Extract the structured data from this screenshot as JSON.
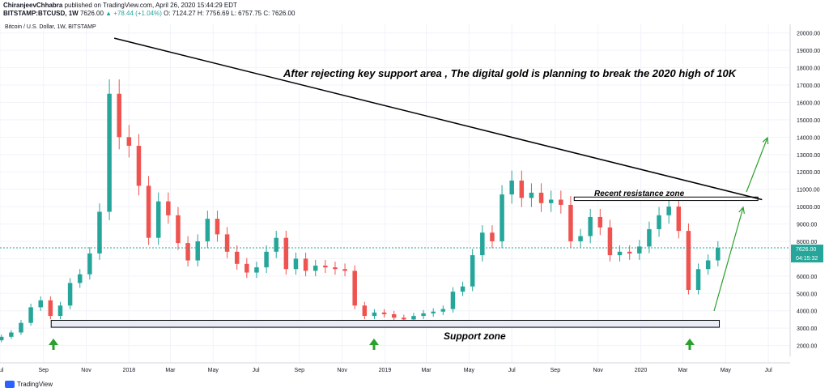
{
  "header": {
    "author": "ChiranjeevChhabra",
    "published": " published on TradingView.com, April 26, 2020 15:44:29 EDT",
    "symbol": "BITSTAMP:BTCUSD, 1W",
    "last": "7626.00",
    "change": "▲ +78.44 (+1.04%)",
    "ohlc": "O: 7124.27  H: 7756.69  L: 6757.75  C: 7626.00"
  },
  "symbol_label": "Bitcoin / U.S. Dollar, 1W, BITSTAMP",
  "annotations": {
    "headline": "After rejecting key support area , The digital gold is planning to break the 2020 high of 10K",
    "resistance": "Recent resistance zone",
    "support": "Support zone"
  },
  "price_badge": {
    "price": "7626.00",
    "countdown": "04:15:32"
  },
  "logo": "TradingView",
  "colors": {
    "up": "#26a69a",
    "down": "#ef5350",
    "arrow": "#2ca02c",
    "trend": "#000000",
    "price_line": "#26a69a"
  },
  "chart_data": {
    "type": "candlestick",
    "symbol": "BTCUSD",
    "timeframe": "1W",
    "ylim": [
      1000,
      20500
    ],
    "y_ticks": [
      2000,
      3000,
      4000,
      5000,
      6000,
      7000,
      8000,
      9000,
      10000,
      11000,
      12000,
      13000,
      14000,
      15000,
      16000,
      17000,
      18000,
      19000,
      20000
    ],
    "x_ticks": [
      {
        "label": "Jul",
        "date": "2017-07-01"
      },
      {
        "label": "Sep",
        "date": "2017-09-01"
      },
      {
        "label": "Nov",
        "date": "2017-11-01"
      },
      {
        "label": "2018",
        "date": "2018-01-01"
      },
      {
        "label": "Mar",
        "date": "2018-03-01"
      },
      {
        "label": "May",
        "date": "2018-05-01"
      },
      {
        "label": "Jul",
        "date": "2018-07-01"
      },
      {
        "label": "Sep",
        "date": "2018-09-01"
      },
      {
        "label": "Nov",
        "date": "2018-11-01"
      },
      {
        "label": "2019",
        "date": "2019-01-01"
      },
      {
        "label": "Mar",
        "date": "2019-03-01"
      },
      {
        "label": "May",
        "date": "2019-05-01"
      },
      {
        "label": "Jul",
        "date": "2019-07-01"
      },
      {
        "label": "Sep",
        "date": "2019-09-01"
      },
      {
        "label": "Nov",
        "date": "2019-11-01"
      },
      {
        "label": "2020",
        "date": "2020-01-01"
      },
      {
        "label": "Mar",
        "date": "2020-03-01"
      },
      {
        "label": "May",
        "date": "2020-05-01"
      },
      {
        "label": "Jul",
        "date": "2020-07-01"
      }
    ],
    "xlim": [
      "2017-07-01",
      "2020-08-01"
    ],
    "closes": [
      {
        "date": "2017-07-03",
        "c": 2500
      },
      {
        "date": "2017-07-17",
        "c": 2750
      },
      {
        "date": "2017-07-31",
        "c": 3300
      },
      {
        "date": "2017-08-14",
        "c": 4200
      },
      {
        "date": "2017-08-28",
        "c": 4600
      },
      {
        "date": "2017-09-11",
        "c": 3700
      },
      {
        "date": "2017-09-25",
        "c": 4300
      },
      {
        "date": "2017-10-09",
        "c": 5600
      },
      {
        "date": "2017-10-23",
        "c": 6100
      },
      {
        "date": "2017-11-06",
        "c": 7300
      },
      {
        "date": "2017-11-20",
        "c": 9700
      },
      {
        "date": "2017-12-04",
        "c": 16500
      },
      {
        "date": "2017-12-18",
        "c": 14000
      },
      {
        "date": "2018-01-01",
        "c": 13500
      },
      {
        "date": "2018-01-15",
        "c": 11200
      },
      {
        "date": "2018-01-29",
        "c": 8200
      },
      {
        "date": "2018-02-12",
        "c": 10300
      },
      {
        "date": "2018-02-26",
        "c": 9500
      },
      {
        "date": "2018-03-12",
        "c": 7900
      },
      {
        "date": "2018-03-26",
        "c": 6900
      },
      {
        "date": "2018-04-09",
        "c": 8000
      },
      {
        "date": "2018-04-23",
        "c": 9300
      },
      {
        "date": "2018-05-07",
        "c": 8400
      },
      {
        "date": "2018-05-21",
        "c": 7400
      },
      {
        "date": "2018-06-04",
        "c": 6700
      },
      {
        "date": "2018-06-18",
        "c": 6200
      },
      {
        "date": "2018-07-02",
        "c": 6500
      },
      {
        "date": "2018-07-16",
        "c": 7400
      },
      {
        "date": "2018-07-30",
        "c": 8200
      },
      {
        "date": "2018-08-13",
        "c": 6400
      },
      {
        "date": "2018-08-27",
        "c": 7000
      },
      {
        "date": "2018-09-10",
        "c": 6300
      },
      {
        "date": "2018-09-24",
        "c": 6600
      },
      {
        "date": "2018-10-08",
        "c": 6500
      },
      {
        "date": "2018-10-22",
        "c": 6400
      },
      {
        "date": "2018-11-05",
        "c": 6300
      },
      {
        "date": "2018-11-19",
        "c": 4300
      },
      {
        "date": "2018-12-03",
        "c": 3700
      },
      {
        "date": "2018-12-17",
        "c": 3900
      },
      {
        "date": "2018-12-31",
        "c": 3800
      },
      {
        "date": "2019-01-14",
        "c": 3600
      },
      {
        "date": "2019-01-28",
        "c": 3500
      },
      {
        "date": "2019-02-11",
        "c": 3700
      },
      {
        "date": "2019-02-25",
        "c": 3850
      },
      {
        "date": "2019-03-11",
        "c": 3950
      },
      {
        "date": "2019-03-25",
        "c": 4100
      },
      {
        "date": "2019-04-08",
        "c": 5100
      },
      {
        "date": "2019-04-22",
        "c": 5400
      },
      {
        "date": "2019-05-06",
        "c": 7200
      },
      {
        "date": "2019-05-20",
        "c": 8500
      },
      {
        "date": "2019-06-03",
        "c": 8000
      },
      {
        "date": "2019-06-17",
        "c": 10700
      },
      {
        "date": "2019-07-01",
        "c": 11500
      },
      {
        "date": "2019-07-15",
        "c": 10500
      },
      {
        "date": "2019-07-29",
        "c": 10800
      },
      {
        "date": "2019-08-12",
        "c": 10200
      },
      {
        "date": "2019-08-26",
        "c": 10400
      },
      {
        "date": "2019-09-09",
        "c": 10100
      },
      {
        "date": "2019-09-23",
        "c": 8000
      },
      {
        "date": "2019-10-07",
        "c": 8300
      },
      {
        "date": "2019-10-21",
        "c": 9400
      },
      {
        "date": "2019-11-04",
        "c": 8800
      },
      {
        "date": "2019-11-18",
        "c": 7200
      },
      {
        "date": "2019-12-02",
        "c": 7400
      },
      {
        "date": "2019-12-16",
        "c": 7300
      },
      {
        "date": "2019-12-30",
        "c": 7700
      },
      {
        "date": "2020-01-13",
        "c": 8700
      },
      {
        "date": "2020-01-27",
        "c": 9500
      },
      {
        "date": "2020-02-10",
        "c": 10000
      },
      {
        "date": "2020-02-24",
        "c": 8600
      },
      {
        "date": "2020-03-09",
        "c": 5200
      },
      {
        "date": "2020-03-23",
        "c": 6400
      },
      {
        "date": "2020-04-06",
        "c": 6900
      },
      {
        "date": "2020-04-20",
        "c": 7626
      }
    ],
    "trendline": {
      "from": {
        "date": "2017-12-11",
        "price": 19700
      },
      "to": {
        "date": "2020-06-22",
        "price": 10400
      }
    },
    "resistance_zone": {
      "from": "2019-09-28",
      "to": "2020-06-16",
      "low": 10350,
      "high": 10550
    },
    "support_zone": {
      "from": "2017-09-12",
      "to": "2020-04-22",
      "low": 3050,
      "high": 3450
    },
    "current_price": 7626
  }
}
